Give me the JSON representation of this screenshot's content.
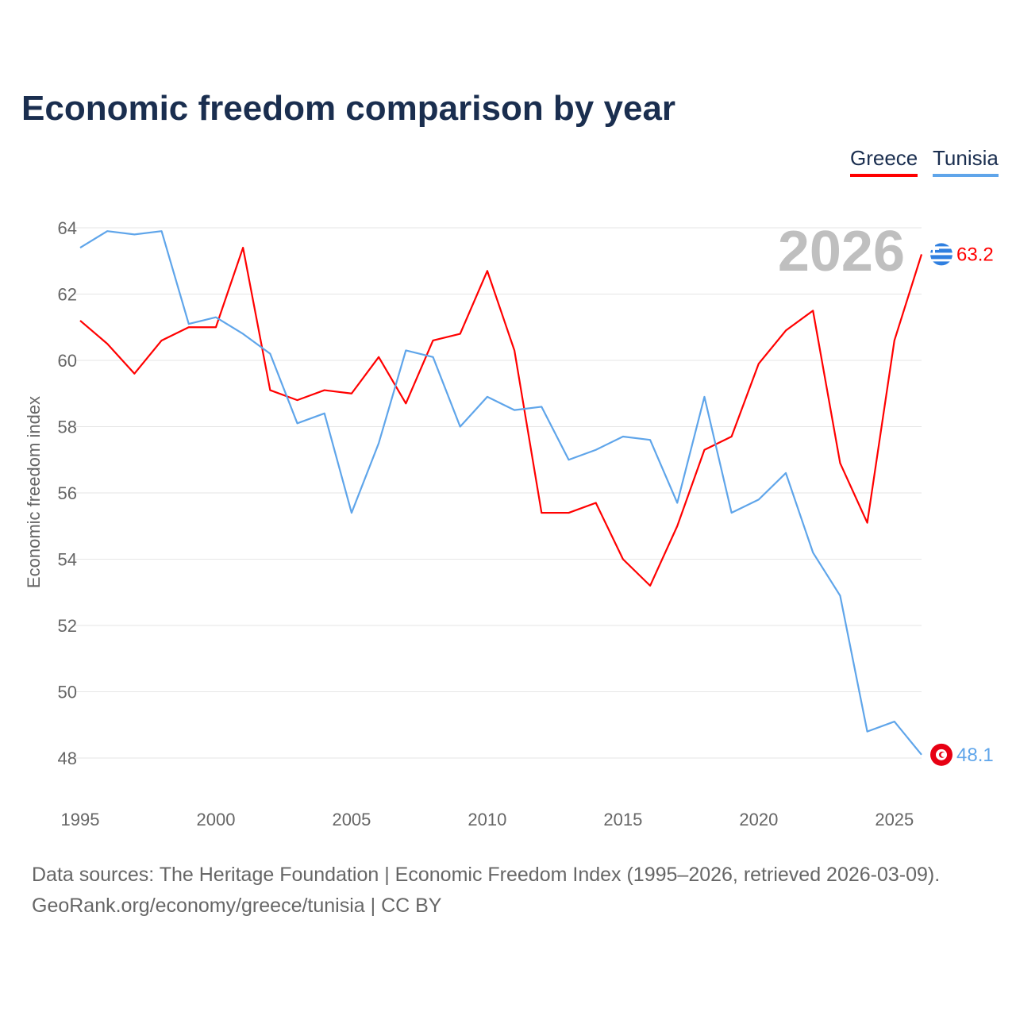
{
  "chart_data": {
    "type": "line",
    "title": "Economic freedom comparison by year",
    "xlabel": "",
    "ylabel": "Economic freedom index",
    "x": [
      1995,
      1996,
      1997,
      1998,
      1999,
      2000,
      2001,
      2002,
      2003,
      2004,
      2005,
      2006,
      2007,
      2008,
      2009,
      2010,
      2011,
      2012,
      2013,
      2014,
      2015,
      2016,
      2017,
      2018,
      2019,
      2020,
      2021,
      2022,
      2023,
      2024,
      2025,
      2026
    ],
    "xlim": [
      1995,
      2026
    ],
    "ylim": [
      47,
      64.5
    ],
    "xticks": [
      1995,
      2000,
      2005,
      2010,
      2015,
      2020,
      2025
    ],
    "yticks": [
      48,
      50,
      52,
      54,
      56,
      58,
      60,
      62,
      64
    ],
    "grid": true,
    "legend": "top-right",
    "year_label": "2026",
    "series": [
      {
        "name": "Greece",
        "color": "#ff0000",
        "end_label": "63.2",
        "flag": "greece",
        "values": [
          61.2,
          60.5,
          59.6,
          60.6,
          61.0,
          61.0,
          63.4,
          59.1,
          58.8,
          59.1,
          59.0,
          60.1,
          58.7,
          60.6,
          60.8,
          62.7,
          60.3,
          55.4,
          55.4,
          55.7,
          54.0,
          53.2,
          55.0,
          57.3,
          57.7,
          59.9,
          60.9,
          61.5,
          56.9,
          55.1,
          60.6,
          63.2
        ]
      },
      {
        "name": "Tunisia",
        "color": "#5fa5ea",
        "end_label": "48.1",
        "flag": "tunisia",
        "values": [
          63.4,
          63.9,
          63.8,
          63.9,
          61.1,
          61.3,
          60.8,
          60.2,
          58.1,
          58.4,
          55.4,
          57.5,
          60.3,
          60.1,
          58.0,
          58.9,
          58.5,
          58.6,
          57.0,
          57.3,
          57.7,
          57.6,
          55.7,
          58.9,
          55.4,
          55.8,
          56.6,
          54.2,
          52.9,
          48.8,
          49.1,
          48.1
        ]
      }
    ]
  },
  "footer": {
    "line1": "Data sources: The Heritage Foundation | Economic Freedom Index (1995–2026, retrieved 2026-03-09).",
    "line2": "GeoRank.org/economy/greece/tunisia | CC BY"
  }
}
